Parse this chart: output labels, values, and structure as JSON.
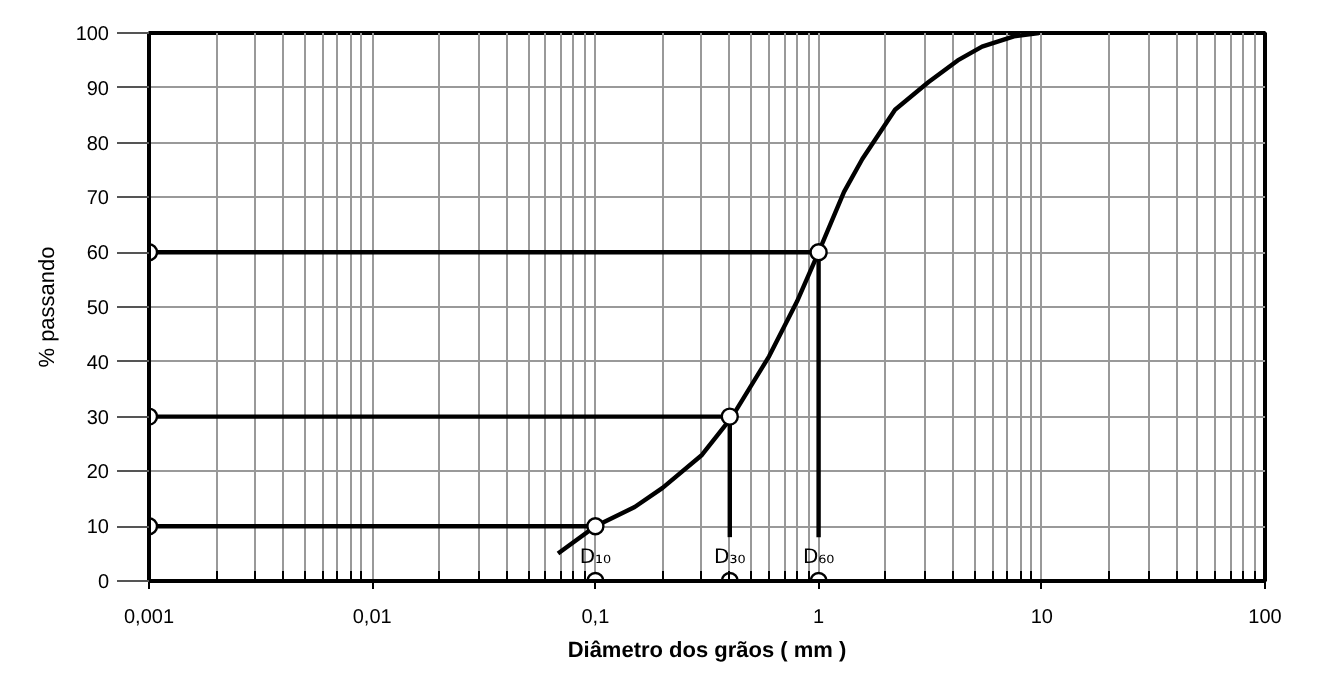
{
  "chart_data": {
    "type": "line",
    "xlabel": "Diâmetro dos grãos ( mm )",
    "ylabel": "% passando",
    "log": "x",
    "xlim": [
      0.001,
      100
    ],
    "ylim": [
      0,
      100
    ],
    "xticks": [
      {
        "value": 0.001,
        "label": "0,001"
      },
      {
        "value": 0.01,
        "label": "0,01"
      },
      {
        "value": 0.1,
        "label": "0,1"
      },
      1,
      10,
      100
    ],
    "yticks": [
      0,
      10,
      20,
      30,
      40,
      50,
      60,
      70,
      80,
      90,
      100
    ],
    "grid": true,
    "series": [
      {
        "color": "#000000",
        "x": [
          0.068,
          0.1,
          0.15,
          0.2,
          0.3,
          0.41,
          0.6,
          0.8,
          1,
          1.3,
          1.57,
          2.2,
          3.1,
          4.2,
          5.4,
          7.5,
          9.7
        ],
        "values": [
          5,
          10,
          13.5,
          17,
          23,
          30,
          41,
          51,
          60,
          71,
          77,
          86,
          91,
          95,
          97.5,
          99.4,
          100
        ]
      },
      {
        "color": "#000000",
        "x": [
          0.001,
          0.1
        ],
        "values": [
          10,
          10
        ]
      },
      {
        "color": "#000000",
        "x": [
          0.001,
          0.4
        ],
        "values": [
          30,
          30
        ]
      },
      {
        "color": "#000000",
        "x": [
          0.001,
          1
        ],
        "values": [
          60,
          60
        ]
      },
      {
        "color": "#000000",
        "x": [
          0.4,
          0.4
        ],
        "values": [
          30,
          8
        ]
      },
      {
        "color": "#000000",
        "x": [
          1,
          1
        ],
        "values": [
          60,
          8
        ]
      },
      {
        "type": "scatter",
        "marker": "circle",
        "color": "#000000",
        "x": [
          0.001,
          0.001,
          0.001,
          0.1,
          0.4,
          1,
          0.1,
          0.4,
          1
        ],
        "values": [
          10,
          30,
          60,
          10,
          30,
          60,
          0,
          0,
          0
        ]
      }
    ],
    "annotations": [
      {
        "text": "D₁₀",
        "x": 0.1,
        "y": 0
      },
      {
        "text": "D₃₀",
        "x": 0.4,
        "y": 0
      },
      {
        "text": "D₆₀",
        "x": 1,
        "y": 0
      }
    ]
  }
}
